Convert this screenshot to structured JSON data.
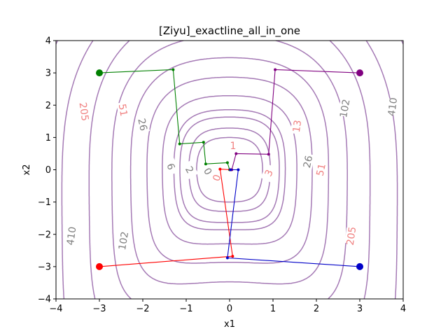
{
  "chart_data": {
    "type": "line",
    "title": "[Ziyu]_exactline_all_in_one",
    "xlabel": "x1",
    "ylabel": "x2",
    "xlim": [
      -4,
      4
    ],
    "ylim": [
      -4,
      4
    ],
    "xticks": [
      "−4",
      "−3",
      "−2",
      "−1",
      "0",
      "1",
      "2",
      "3",
      "4"
    ],
    "yticks": [
      "−4",
      "−3",
      "−2",
      "−1",
      "0",
      "1",
      "2",
      "3",
      "4"
    ],
    "grid": false,
    "legend": "none",
    "contour_color": "#a57ab5",
    "contour_levels": [
      0.5,
      1,
      2,
      3,
      6,
      13,
      26,
      51,
      102,
      205,
      410
    ],
    "contour_labels": [
      {
        "text": "410",
        "x": -3.65,
        "y": -2.05,
        "angle": -82,
        "color": "#808080"
      },
      {
        "text": "102",
        "x": -2.45,
        "y": -2.2,
        "angle": -80,
        "color": "#808080"
      },
      {
        "text": "205",
        "x": -3.35,
        "y": 1.8,
        "angle": 82,
        "color": "#f08080"
      },
      {
        "text": "51",
        "x": -2.45,
        "y": 1.85,
        "angle": 80,
        "color": "#f08080"
      },
      {
        "text": "26",
        "x": -2.0,
        "y": 1.4,
        "angle": 78,
        "color": "#808080"
      },
      {
        "text": "6",
        "x": -1.35,
        "y": 0.1,
        "angle": 70,
        "color": "#808080"
      },
      {
        "text": "2",
        "x": -0.92,
        "y": 0.0,
        "angle": 60,
        "color": "#808080"
      },
      {
        "text": "0",
        "x": -0.5,
        "y": -0.05,
        "angle": 60,
        "color": "#808080"
      },
      {
        "text": "1",
        "x": 0.08,
        "y": 0.75,
        "angle": 0,
        "color": "#f08080"
      },
      {
        "text": "0",
        "x": -0.3,
        "y": -0.25,
        "angle": -70,
        "color": "#f08080"
      },
      {
        "text": "3",
        "x": 0.9,
        "y": -0.1,
        "angle": -65,
        "color": "#f08080"
      },
      {
        "text": "13",
        "x": 1.55,
        "y": 1.35,
        "angle": -82,
        "color": "#f08080"
      },
      {
        "text": "26",
        "x": 1.8,
        "y": 0.25,
        "angle": -78,
        "color": "#808080"
      },
      {
        "text": "51",
        "x": 2.1,
        "y": 0.0,
        "angle": -78,
        "color": "#f08080"
      },
      {
        "text": "102",
        "x": 2.65,
        "y": 1.9,
        "angle": -80,
        "color": "#808080"
      },
      {
        "text": "410",
        "x": 3.75,
        "y": 1.95,
        "angle": -82,
        "color": "#808080"
      },
      {
        "text": "205",
        "x": 2.8,
        "y": -2.05,
        "angle": -82,
        "color": "#f08080"
      }
    ],
    "series": [
      {
        "color": "#008000",
        "points": [
          [
            -3,
            3
          ],
          [
            -1.3,
            3.1
          ],
          [
            -1.15,
            0.8
          ],
          [
            -0.6,
            0.85
          ],
          [
            -0.55,
            0.18
          ],
          [
            -0.05,
            0.22
          ],
          [
            0.0,
            0.0
          ]
        ]
      },
      {
        "color": "#800080",
        "points": [
          [
            3,
            3
          ],
          [
            1.05,
            3.1
          ],
          [
            0.9,
            0.48
          ],
          [
            0.15,
            0.5
          ],
          [
            0.05,
            0.0
          ]
        ]
      },
      {
        "color": "#ff0000",
        "points": [
          [
            -3,
            -3
          ],
          [
            0.07,
            -2.68
          ],
          [
            -0.22,
            0.02
          ],
          [
            0.02,
            0.0
          ]
        ]
      },
      {
        "color": "#0000c8",
        "points": [
          [
            3,
            -3
          ],
          [
            -0.05,
            -2.73
          ],
          [
            0.2,
            0.0
          ],
          [
            0.02,
            0.0
          ]
        ]
      }
    ],
    "start_marker_size": 5,
    "step_marker_size": 2
  }
}
